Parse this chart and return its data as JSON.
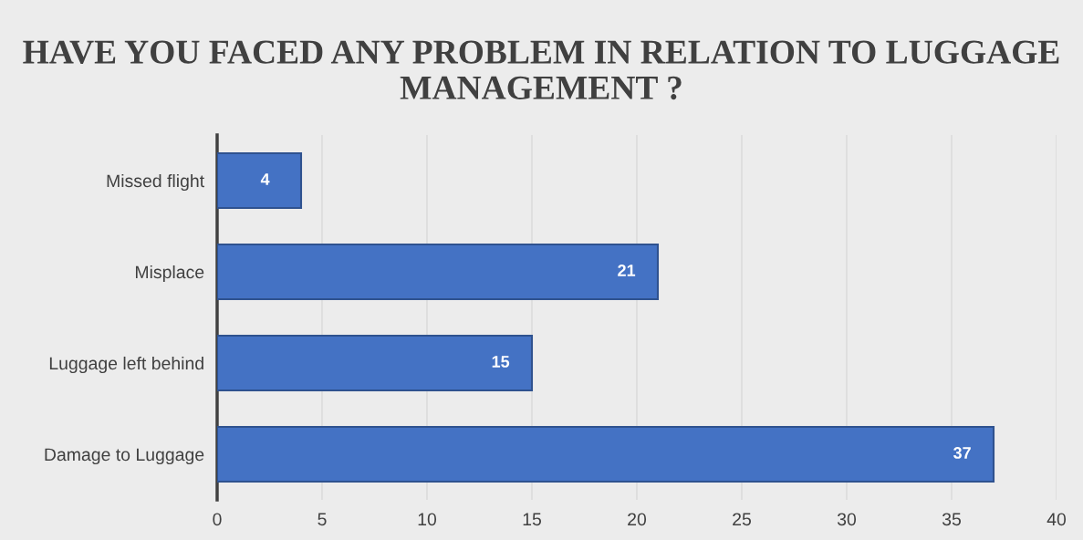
{
  "chart_data": {
    "type": "bar",
    "orientation": "horizontal",
    "title": "HAVE YOU FACED ANY PROBLEM IN RELATION TO LUGGAGE MANAGEMENT ?",
    "categories": [
      "Missed flight",
      "Misplace",
      "Luggage left behind",
      "Damage to Luggage"
    ],
    "values": [
      4,
      21,
      15,
      37
    ],
    "color": "#4472c4",
    "xlim": [
      0,
      40
    ],
    "xticks": [
      0,
      5,
      10,
      15,
      20,
      25,
      30,
      35,
      40
    ],
    "grid": "x",
    "data_labels": true
  }
}
